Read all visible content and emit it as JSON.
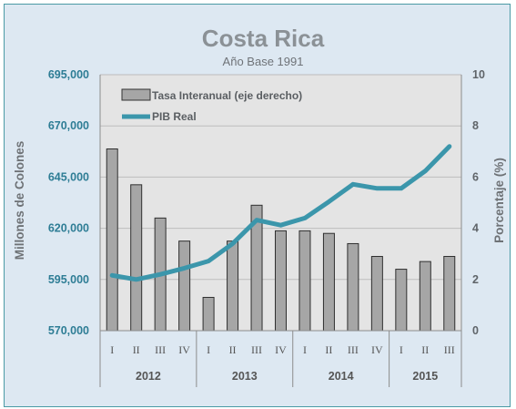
{
  "chart_data": {
    "type": "bar+line",
    "title": "Costa Rica",
    "subtitle": "Año Base 1991",
    "ylabel_left": "Millones de Colones",
    "ylabel_right": "Porcentaje (%)",
    "ylim_left": [
      570000,
      695000
    ],
    "yticks_left": [
      "695,000",
      "670,000",
      "645,000",
      "620,000",
      "595,000",
      "570,000"
    ],
    "ylim_right": [
      0,
      10
    ],
    "yticks_right": [
      "10",
      "8",
      "6",
      "4",
      "2",
      "0"
    ],
    "categories": [
      "I",
      "II",
      "III",
      "IV",
      "I",
      "II",
      "III",
      "IV",
      "I",
      "II",
      "III",
      "IV",
      "I",
      "II",
      "III"
    ],
    "years": [
      {
        "label": "2012",
        "quarters": 4
      },
      {
        "label": "2013",
        "quarters": 4
      },
      {
        "label": "2014",
        "quarters": 4
      },
      {
        "label": "2015",
        "quarters": 3
      }
    ],
    "series": [
      {
        "name": "Tasa Interanual (eje derecho)",
        "kind": "bar",
        "axis": "right",
        "color": "#a6a6a6",
        "values": [
          7.1,
          5.7,
          4.4,
          3.5,
          1.3,
          3.5,
          4.9,
          3.9,
          3.9,
          3.8,
          3.4,
          2.9,
          2.4,
          2.7,
          2.9
        ]
      },
      {
        "name": "PIB Real",
        "kind": "line",
        "axis": "left",
        "color": "#3b96ab",
        "values": [
          597000,
          595000,
          597500,
          600500,
          604000,
          612500,
          624000,
          621500,
          625000,
          633000,
          641500,
          639500,
          639500,
          648000,
          660000
        ]
      }
    ],
    "legend_position": "top-left",
    "grid": true
  }
}
